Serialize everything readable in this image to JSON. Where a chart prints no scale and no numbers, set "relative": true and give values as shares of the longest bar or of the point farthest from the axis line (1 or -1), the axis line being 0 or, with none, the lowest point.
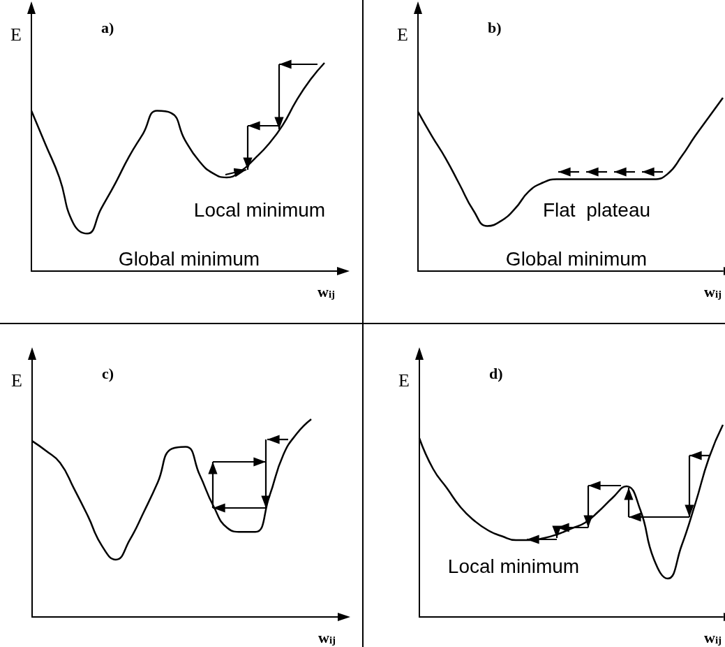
{
  "chart_data": [
    {
      "type": "line",
      "title": "a)",
      "xlabel": "w$_{ij}$",
      "ylabel": "E",
      "relative": true,
      "color": "#000000",
      "categories": [
        null,
        null,
        null,
        null,
        null,
        null,
        null,
        null,
        null,
        null,
        null,
        null,
        null,
        null,
        null,
        null,
        null,
        null,
        null,
        null,
        null,
        null,
        null
      ],
      "values": [
        0.77,
        0.61,
        0.45,
        0.23,
        0.18,
        0.3,
        0.42,
        0.55,
        0.66,
        0.77,
        0.76,
        0.63,
        0.53,
        0.47,
        0.45,
        0.48,
        0.54,
        0.61,
        0.7,
        0.82,
        0.92,
        1.0,
        null
      ],
      "annotations": [
        "Local minimum",
        "Global minimum"
      ]
    },
    {
      "type": "line",
      "title": "b)",
      "xlabel": "w$_{ij}$",
      "ylabel": "E",
      "relative": true,
      "color": "#000000",
      "categories": [
        null,
        null,
        null,
        null,
        null,
        null,
        null,
        null,
        null,
        null,
        null,
        null,
        null,
        null,
        null,
        null,
        null,
        null,
        null,
        null,
        null,
        null,
        null
      ],
      "values": [
        0.92,
        0.78,
        0.65,
        0.5,
        0.35,
        0.26,
        0.29,
        0.36,
        0.46,
        0.51,
        0.53,
        0.53,
        0.53,
        0.53,
        0.53,
        0.53,
        0.53,
        0.53,
        0.56,
        0.66,
        0.78,
        0.89,
        1.0
      ],
      "annotations": [
        "Flat  plateau",
        "Global minimum"
      ]
    },
    {
      "type": "line",
      "title": "c)",
      "xlabel": "w$_{ij}$",
      "ylabel": "E",
      "relative": true,
      "color": "#000000",
      "categories": [
        null,
        null,
        null,
        null,
        null,
        null,
        null,
        null,
        null,
        null,
        null,
        null,
        null,
        null,
        null,
        null,
        null,
        null,
        null,
        null,
        null,
        null,
        null
      ],
      "values": [
        0.89,
        0.84,
        0.78,
        0.65,
        0.51,
        0.36,
        0.29,
        0.39,
        0.53,
        0.68,
        0.85,
        0.86,
        0.72,
        0.56,
        0.45,
        0.43,
        0.43,
        0.61,
        0.82,
        0.93,
        1.0,
        null,
        null
      ]
    },
    {
      "type": "line",
      "title": "d)",
      "xlabel": "w$_{ij}$",
      "ylabel": "E",
      "relative": true,
      "color": "#000000",
      "categories": [
        null,
        null,
        null,
        null,
        null,
        null,
        null,
        null,
        null,
        null,
        null,
        null,
        null,
        null,
        null,
        null,
        null,
        null,
        null,
        null,
        null,
        null,
        null
      ],
      "values": [
        0.93,
        0.77,
        0.67,
        0.57,
        0.5,
        0.45,
        0.42,
        0.4,
        0.4,
        0.41,
        0.43,
        0.46,
        0.49,
        0.55,
        0.62,
        0.68,
        0.56,
        0.3,
        0.2,
        0.37,
        0.59,
        0.83,
        1.0
      ],
      "annotations": [
        "Local minimum"
      ]
    }
  ]
}
